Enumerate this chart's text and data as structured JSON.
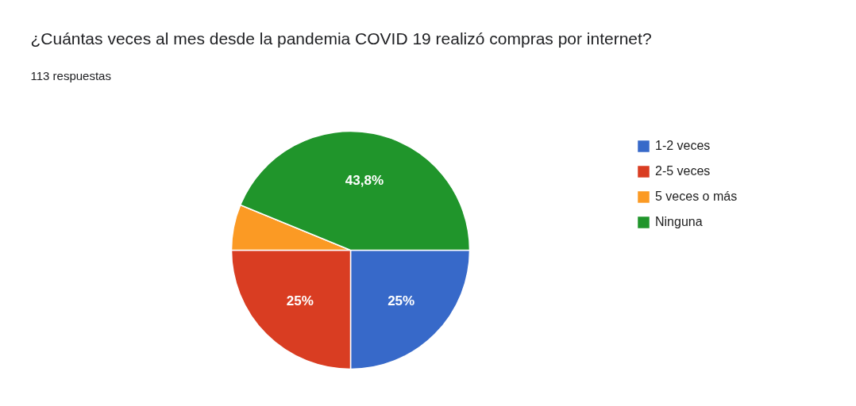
{
  "chart_data": {
    "type": "pie",
    "title": "¿Cuántas veces al mes desde la pandemia COVID 19 realizó compras por internet?",
    "subtitle": "113 respuestas",
    "categories": [
      "1-2 veces",
      "2-5 veces",
      "5 veces o más",
      "Ninguna"
    ],
    "values": [
      25,
      25,
      6.2,
      43.8
    ],
    "colors": [
      "#3769c9",
      "#d93d22",
      "#fb9a24",
      "#20952b"
    ],
    "value_labels": [
      "25%",
      "25%",
      null,
      "43,8%"
    ],
    "legend": "right"
  }
}
